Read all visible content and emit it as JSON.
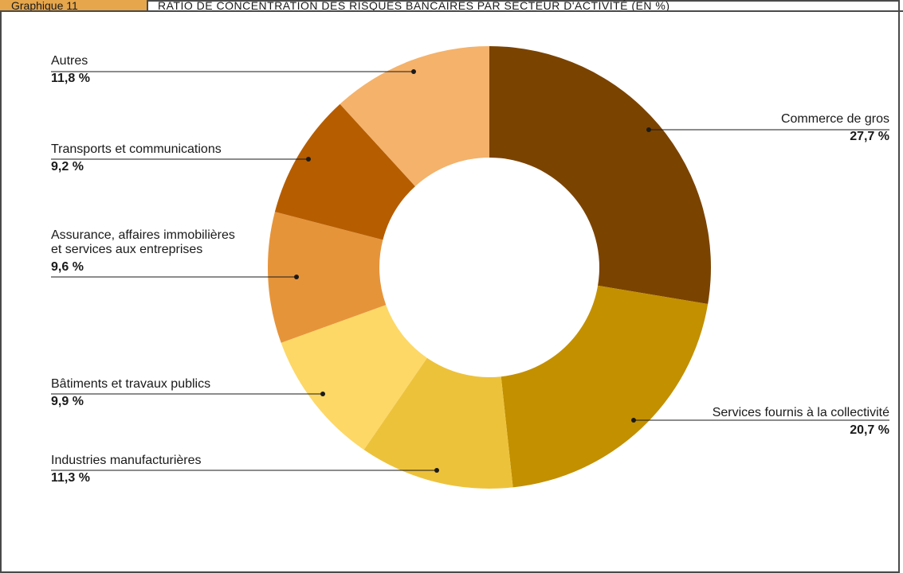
{
  "header": {
    "tag": "Graphique 11",
    "title": "RATIO DE CONCENTRATION DES RISQUES BANCAIRES PAR SECTEUR D'ACTIVITÉ (EN %)"
  },
  "chart_data": {
    "type": "pie",
    "donut": true,
    "slices": [
      {
        "name": "Commerce de gros",
        "value": 27.7,
        "label_value": "27,7 %",
        "color": "#7b4300"
      },
      {
        "name": "Services fournis à la collectivité",
        "value": 20.7,
        "label_value": "20,7 %",
        "color": "#c39000"
      },
      {
        "name": "Industries manufacturières",
        "value": 11.3,
        "label_value": "11,3 %",
        "color": "#edc23b"
      },
      {
        "name": "Bâtiments et travaux publics",
        "value": 9.9,
        "label_value": "9,9 %",
        "color": "#fdd866"
      },
      {
        "name": "Assurance, affaires immobilières\net services aux entreprises",
        "value": 9.6,
        "label_value": "9,6 %",
        "color": "#e6943a"
      },
      {
        "name": "Transports et communications",
        "value": 9.2,
        "label_value": "9,2 %",
        "color": "#b65d00"
      },
      {
        "name": "Autres",
        "value": 11.8,
        "label_value": "11,8 %",
        "color": "#f4b26b"
      }
    ],
    "legend": "callout labels"
  }
}
